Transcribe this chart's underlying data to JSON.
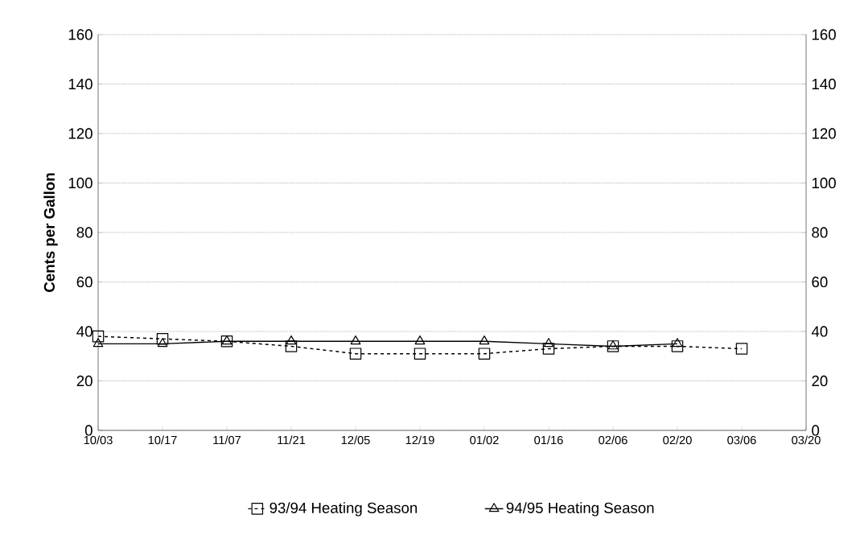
{
  "chart_data": {
    "type": "line",
    "ylabel": "Cents per Gallon",
    "categories": [
      "10/03",
      "10/17",
      "11/07",
      "11/21",
      "12/05",
      "12/19",
      "01/02",
      "01/16",
      "02/06",
      "02/20",
      "03/06",
      "03/20"
    ],
    "series": [
      {
        "name": "93/94 Heating Season",
        "color": "#000000",
        "marker": "square",
        "line_style": "dashed",
        "values": [
          38,
          37,
          36,
          34,
          31,
          31,
          31,
          33,
          34,
          34,
          33,
          null
        ]
      },
      {
        "name": "94/95 Heating Season",
        "color": "#000000",
        "marker": "triangle",
        "line_style": "solid",
        "values": [
          35,
          35,
          36,
          36,
          36,
          36,
          36,
          35,
          34,
          35,
          null,
          null
        ]
      }
    ],
    "ylim": [
      0,
      160
    ],
    "yticks": [
      0,
      20,
      40,
      60,
      80,
      100,
      120,
      140,
      160
    ],
    "y2lim": [
      0,
      160
    ],
    "y2ticks": [
      0,
      20,
      40,
      60,
      80,
      100,
      120,
      140,
      160
    ],
    "grid": "y",
    "legend": "bottom"
  }
}
